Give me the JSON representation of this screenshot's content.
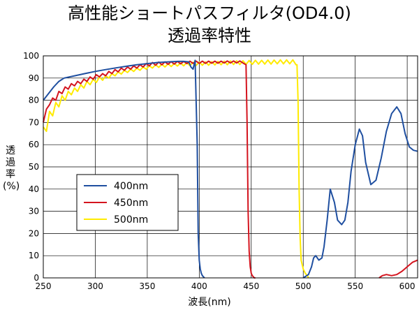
{
  "chart_data": {
    "type": "line",
    "title": "高性能ショートパスフィルタ(OD4.0)",
    "subtitle": "透過率特性",
    "xlabel": "波長(nm)",
    "ylabel": [
      "透",
      "過",
      "率",
      "(%)"
    ],
    "xlim": [
      250,
      610
    ],
    "ylim": [
      0,
      100
    ],
    "xticks": [
      "250",
      "300",
      "350",
      "400",
      "450",
      "500",
      "550",
      "600"
    ],
    "yticks": [
      "0",
      "10",
      "20",
      "30",
      "40",
      "50",
      "60",
      "70",
      "80",
      "90",
      "100"
    ],
    "grid": true,
    "legend_placement": "center-left",
    "series": [
      {
        "name": "400nm",
        "color": "#1f4fa0",
        "x": [
          250,
          255,
          260,
          265,
          270,
          280,
          290,
          300,
          310,
          320,
          330,
          340,
          350,
          360,
          370,
          380,
          385,
          390,
          392,
          394,
          396,
          398,
          399,
          400,
          401,
          402,
          403,
          404,
          405,
          500,
          505,
          508,
          510,
          512,
          515,
          518,
          520,
          523,
          526,
          530,
          533,
          537,
          540,
          543,
          546,
          550,
          554,
          557,
          560,
          565,
          570,
          575,
          580,
          585,
          590,
          594,
          598,
          602,
          606,
          610
        ],
        "y": [
          80,
          83,
          86,
          88.5,
          90,
          91,
          92,
          93,
          93.8,
          94.6,
          95.3,
          96,
          96.5,
          97,
          97.3,
          97.5,
          97.5,
          97.3,
          95,
          94,
          98,
          60,
          20,
          8,
          4,
          2,
          1,
          0.5,
          0,
          0,
          1.5,
          5,
          9,
          10,
          8,
          9,
          14,
          26,
          40,
          34,
          26,
          24,
          26,
          34,
          48,
          60,
          67,
          64,
          52,
          42,
          44,
          54,
          66,
          74,
          77,
          74,
          65,
          59,
          57.5,
          57
        ]
      },
      {
        "name": "450nm",
        "color": "#d4141e",
        "x": [
          250,
          253,
          256,
          259,
          262,
          265,
          268,
          271,
          274,
          277,
          280,
          283,
          286,
          289,
          292,
          295,
          298,
          301,
          304,
          307,
          310,
          313,
          316,
          319,
          322,
          325,
          328,
          331,
          334,
          337,
          340,
          343,
          346,
          349,
          352,
          355,
          358,
          361,
          364,
          367,
          370,
          373,
          376,
          379,
          382,
          385,
          388,
          391,
          394,
          397,
          400,
          403,
          406,
          409,
          412,
          415,
          418,
          421,
          424,
          427,
          430,
          433,
          436,
          439,
          442,
          445,
          446,
          447,
          448,
          449,
          450,
          451,
          452,
          453,
          454,
          573,
          576,
          580,
          585,
          590,
          595,
          600,
          605,
          610
        ],
        "y": [
          70,
          76,
          78,
          81,
          80,
          84,
          83,
          86,
          85,
          87.5,
          86.5,
          88.5,
          87.5,
          89.5,
          88.5,
          90.5,
          89.5,
          91.5,
          90.5,
          92,
          91,
          93,
          92,
          93.8,
          92.8,
          94.5,
          93.5,
          95,
          94,
          95.5,
          94.5,
          96,
          95,
          96.5,
          95.5,
          97,
          95.8,
          97.2,
          96,
          97.3,
          96.2,
          97.4,
          96.3,
          97.5,
          96.4,
          97.5,
          96.5,
          97.6,
          96.6,
          97.6,
          96.6,
          97.6,
          96.6,
          97.6,
          96.7,
          97.6,
          96.7,
          97.6,
          96.8,
          97.7,
          96.8,
          97.7,
          96.8,
          97.7,
          96.8,
          96,
          70,
          30,
          12,
          5,
          2,
          1,
          0.5,
          0,
          0,
          0,
          1,
          1.5,
          1,
          1.5,
          3,
          5,
          7,
          8
        ]
      },
      {
        "name": "500nm",
        "color": "#ffeb00",
        "x": [
          250,
          253,
          256,
          259,
          262,
          265,
          268,
          271,
          274,
          277,
          280,
          283,
          286,
          289,
          292,
          295,
          298,
          301,
          304,
          307,
          310,
          313,
          316,
          319,
          322,
          325,
          328,
          331,
          334,
          337,
          340,
          343,
          346,
          349,
          352,
          355,
          358,
          361,
          364,
          367,
          370,
          373,
          376,
          379,
          382,
          385,
          388,
          391,
          394,
          397,
          400,
          403,
          406,
          409,
          412,
          415,
          418,
          421,
          424,
          427,
          430,
          433,
          436,
          439,
          442,
          445,
          448,
          451,
          454,
          457,
          460,
          463,
          466,
          469,
          472,
          475,
          478,
          481,
          484,
          487,
          490,
          493,
          494,
          495,
          496,
          497,
          498,
          500,
          502,
          504,
          505
        ],
        "y": [
          68,
          66,
          75,
          73,
          79,
          77,
          82,
          80,
          84,
          82.5,
          85.5,
          84,
          87,
          85.5,
          88.5,
          87,
          89.5,
          88,
          90.5,
          89,
          91,
          90,
          92,
          91,
          92.8,
          91.8,
          93.5,
          92.5,
          94,
          93,
          94.5,
          93.5,
          95,
          94,
          95.5,
          94.5,
          96,
          94.8,
          96.2,
          95,
          96.4,
          95.2,
          96.6,
          95.4,
          96.8,
          95.5,
          97,
          95.6,
          97.1,
          95.7,
          97.2,
          95.8,
          97.3,
          95.8,
          97.4,
          95.9,
          97.5,
          96,
          97.6,
          96,
          97.7,
          96.1,
          97.8,
          96.1,
          97.8,
          96.2,
          97.9,
          96.2,
          98,
          96.3,
          98,
          96.3,
          98.1,
          96.3,
          98.1,
          96.4,
          98.2,
          96.4,
          98.2,
          96.4,
          98.2,
          96,
          96,
          80,
          40,
          18,
          8,
          4,
          2,
          1,
          0
        ]
      }
    ]
  }
}
